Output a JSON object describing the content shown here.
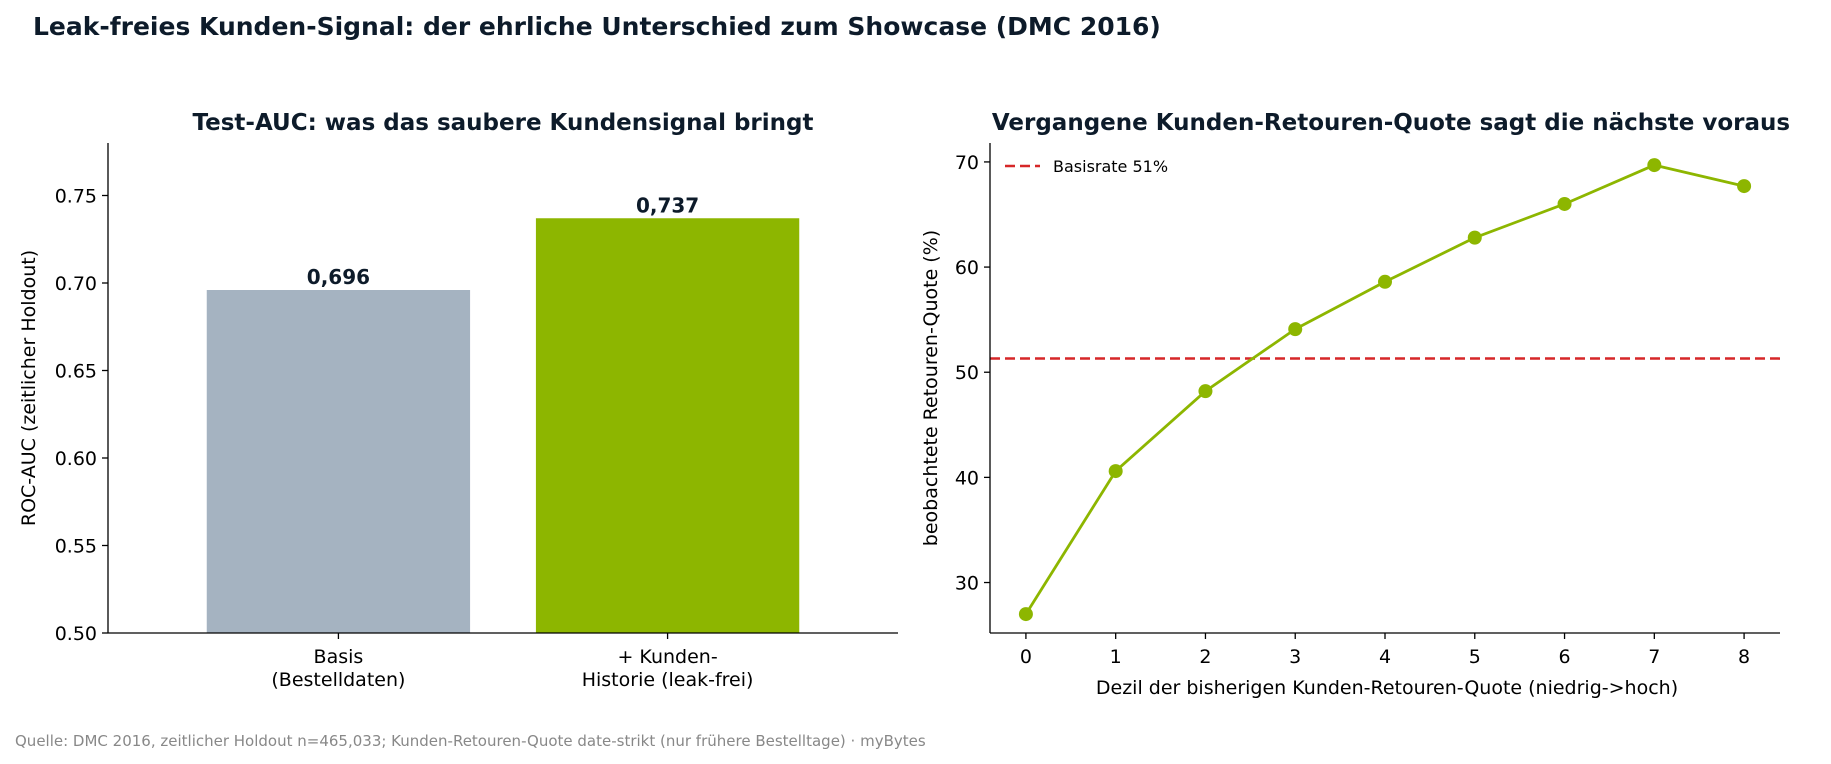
{
  "suptitle": "Leak-freies Kunden-Signal: der ehrliche Unterschied zum Showcase (DMC 2016)",
  "source_note": "Quelle: DMC 2016, zeitlicher Holdout n=465,033; Kunden-Retouren-Quote date-strikt (nur frühere Bestelltage) · myBytes",
  "colors": {
    "text_dark": "#0d1b2a",
    "bar_base": "#a5b3c1",
    "bar_customer": "#8db600",
    "line": "#8db600",
    "baseline": "#d62728",
    "note": "#888888"
  },
  "chart_data": [
    {
      "type": "bar",
      "title": "Test-AUC: was das saubere Kundensignal bringt",
      "ylabel": "ROC-AUC (zeitlicher Holdout)",
      "categories": [
        [
          "Basis",
          "(Bestelldaten)"
        ],
        [
          "+ Kunden-",
          "Historie (leak-frei)"
        ]
      ],
      "values": [
        0.696,
        0.737
      ],
      "value_labels": [
        "0,696",
        "0,737"
      ],
      "ylim": [
        0.5,
        0.78
      ],
      "yticks": [
        0.5,
        0.55,
        0.6,
        0.65,
        0.7,
        0.75
      ],
      "ytick_labels": [
        "0.50",
        "0.55",
        "0.60",
        "0.65",
        "0.70",
        "0.75"
      ],
      "grid": false
    },
    {
      "type": "line",
      "title": "Vergangene Kunden-Retouren-Quote sagt die nächste voraus",
      "xlabel": "Dezil der bisherigen Kunden-Retouren-Quote (niedrig->hoch)",
      "ylabel": "beobachtete Retouren-Quote (%)",
      "x": [
        0,
        1,
        2,
        3,
        4,
        5,
        6,
        7,
        8
      ],
      "y": [
        27.0,
        40.6,
        48.2,
        54.1,
        58.6,
        62.8,
        66.0,
        69.7,
        67.7
      ],
      "xlim": [
        -0.4,
        8.4
      ],
      "ylim": [
        25.2,
        71.8
      ],
      "yticks": [
        30,
        40,
        50,
        60,
        70
      ],
      "ytick_labels": [
        "30",
        "40",
        "50",
        "60",
        "70"
      ],
      "baseline_value": 51.3,
      "legend": {
        "label": "Basisrate 51%",
        "loc": "upper left"
      },
      "grid": false
    }
  ]
}
